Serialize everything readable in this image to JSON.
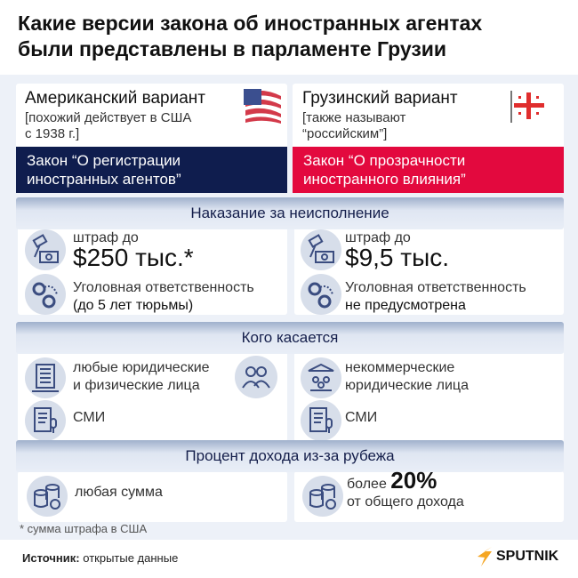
{
  "title": [
    "Какие версии закона об иностранных агентах",
    "были представлены в парламенте Грузии"
  ],
  "colors": {
    "us_band": "#0f1d4e",
    "ge_band": "#e3093e",
    "background": "#edf1f8"
  },
  "left": {
    "heading": "Американский вариант",
    "note": [
      "[похожий действует в США",
      "с 1938 г.]"
    ],
    "law": [
      "Закон “О регистрации",
      "иностранных агентов”"
    ],
    "flag": "us-flag-icon"
  },
  "right": {
    "heading": "Грузинский вариант",
    "note": [
      "[также называют",
      "“российским”]"
    ],
    "law": [
      "Закон “О прозрачности",
      "иностранного влияния”"
    ],
    "flag": "georgia-flag-icon"
  },
  "sections": [
    {
      "title": "Наказание за неисполнение",
      "left": {
        "fine_label": "штраф до",
        "fine_value": "$250 тыс.*",
        "criminal": [
          "Уголовная ответственность",
          "(до 5 лет тюрьмы)"
        ]
      },
      "right": {
        "fine_label": "штраф до",
        "fine_value": "$9,5 тыс.",
        "criminal": [
          "Уголовная ответственность",
          "не предусмотрена"
        ]
      }
    },
    {
      "title": "Кого касается",
      "left": {
        "entities": [
          "любые юридические",
          "и физические лица"
        ],
        "media": "СМИ"
      },
      "right": {
        "entities": [
          "некоммерческие",
          "юридические лица"
        ],
        "media": "СМИ"
      }
    },
    {
      "title": "Процент дохода из-за рубежа",
      "left": {
        "text": "любая сумма"
      },
      "right": {
        "prefix": "более",
        "value": "20%",
        "suffix": "от общего дохода"
      }
    }
  ],
  "footnote": "* сумма штрафа в США",
  "source_label": "Источник:",
  "source_text": "открытые данные",
  "logo": "SPUTNIK"
}
